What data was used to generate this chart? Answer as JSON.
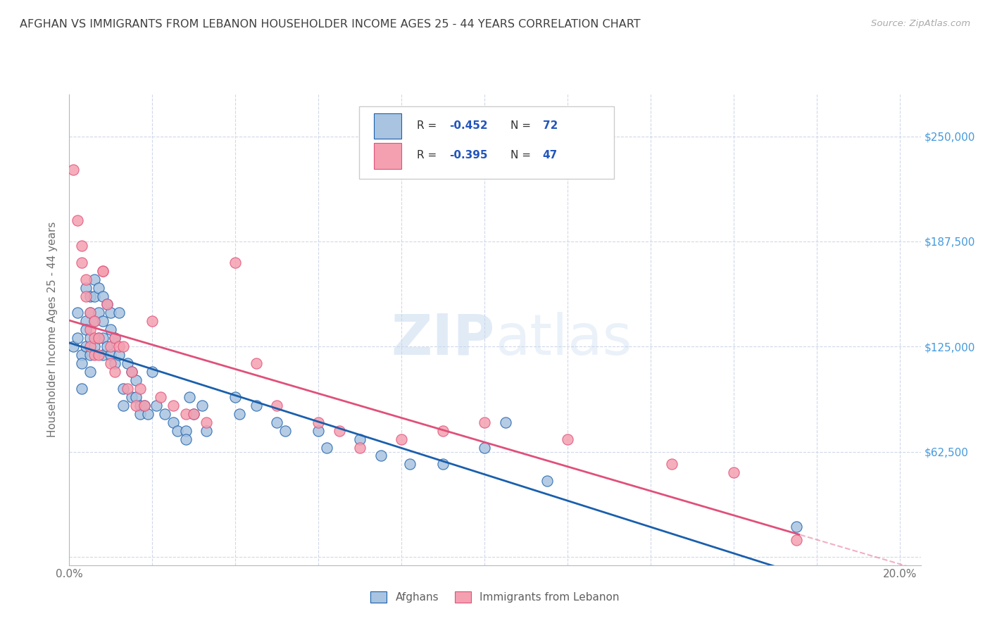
{
  "title": "AFGHAN VS IMMIGRANTS FROM LEBANON HOUSEHOLDER INCOME AGES 25 - 44 YEARS CORRELATION CHART",
  "source": "Source: ZipAtlas.com",
  "ylabel": "Householder Income Ages 25 - 44 years",
  "xlim": [
    0.0,
    0.205
  ],
  "ylim": [
    -5000,
    275000
  ],
  "yticks": [
    0,
    62500,
    125000,
    187500,
    250000
  ],
  "ytick_labels": [
    "",
    "$62,500",
    "$125,000",
    "$187,500",
    "$250,000"
  ],
  "xticks": [
    0.0,
    0.02,
    0.04,
    0.06,
    0.08,
    0.1,
    0.12,
    0.14,
    0.16,
    0.18,
    0.2
  ],
  "xtick_labels": [
    "0.0%",
    "",
    "",
    "",
    "",
    "",
    "",
    "",
    "",
    "",
    "20.0%"
  ],
  "legend_r1": "-0.452",
  "legend_n1": "72",
  "legend_r2": "-0.395",
  "legend_n2": "47",
  "color_afghan": "#a8c4e0",
  "color_lebanon": "#f4a0b0",
  "color_line_afghan": "#1a5fac",
  "color_line_lebanon": "#e0507a",
  "color_axis": "#b0b8c8",
  "color_grid": "#d0d8e8",
  "color_title": "#404040",
  "color_ytick": "#4499dd",
  "color_source": "#aaaaaa",
  "watermark_zip": "ZIP",
  "watermark_atlas": "atlas",
  "afghan_x": [
    0.001,
    0.002,
    0.002,
    0.003,
    0.003,
    0.003,
    0.004,
    0.004,
    0.004,
    0.004,
    0.005,
    0.005,
    0.005,
    0.005,
    0.005,
    0.006,
    0.006,
    0.006,
    0.006,
    0.007,
    0.007,
    0.007,
    0.008,
    0.008,
    0.008,
    0.008,
    0.009,
    0.009,
    0.01,
    0.01,
    0.01,
    0.011,
    0.011,
    0.012,
    0.012,
    0.013,
    0.013,
    0.014,
    0.015,
    0.015,
    0.016,
    0.016,
    0.017,
    0.017,
    0.018,
    0.019,
    0.02,
    0.021,
    0.023,
    0.025,
    0.026,
    0.028,
    0.028,
    0.029,
    0.03,
    0.032,
    0.033,
    0.04,
    0.041,
    0.045,
    0.05,
    0.052,
    0.06,
    0.062,
    0.07,
    0.075,
    0.082,
    0.09,
    0.1,
    0.105,
    0.115,
    0.175
  ],
  "afghan_y": [
    125000,
    145000,
    130000,
    120000,
    115000,
    100000,
    160000,
    140000,
    135000,
    125000,
    155000,
    145000,
    130000,
    120000,
    110000,
    165000,
    155000,
    140000,
    125000,
    160000,
    145000,
    130000,
    155000,
    140000,
    130000,
    120000,
    150000,
    125000,
    145000,
    135000,
    120000,
    130000,
    115000,
    145000,
    120000,
    100000,
    90000,
    115000,
    110000,
    95000,
    105000,
    95000,
    90000,
    85000,
    90000,
    85000,
    110000,
    90000,
    85000,
    80000,
    75000,
    75000,
    70000,
    95000,
    85000,
    90000,
    75000,
    95000,
    85000,
    90000,
    80000,
    75000,
    75000,
    65000,
    70000,
    60000,
    55000,
    55000,
    65000,
    80000,
    45000,
    18000
  ],
  "lebanon_x": [
    0.001,
    0.002,
    0.003,
    0.003,
    0.004,
    0.004,
    0.005,
    0.005,
    0.005,
    0.006,
    0.006,
    0.006,
    0.007,
    0.007,
    0.008,
    0.008,
    0.009,
    0.01,
    0.01,
    0.011,
    0.011,
    0.012,
    0.013,
    0.014,
    0.015,
    0.016,
    0.017,
    0.018,
    0.02,
    0.022,
    0.025,
    0.028,
    0.03,
    0.033,
    0.04,
    0.045,
    0.05,
    0.06,
    0.065,
    0.07,
    0.08,
    0.09,
    0.1,
    0.12,
    0.145,
    0.16,
    0.175
  ],
  "lebanon_y": [
    230000,
    200000,
    185000,
    175000,
    165000,
    155000,
    145000,
    135000,
    125000,
    140000,
    130000,
    120000,
    130000,
    120000,
    170000,
    170000,
    150000,
    125000,
    115000,
    130000,
    110000,
    125000,
    125000,
    100000,
    110000,
    90000,
    100000,
    90000,
    140000,
    95000,
    90000,
    85000,
    85000,
    80000,
    175000,
    115000,
    90000,
    80000,
    75000,
    65000,
    70000,
    75000,
    80000,
    70000,
    55000,
    50000,
    10000
  ]
}
